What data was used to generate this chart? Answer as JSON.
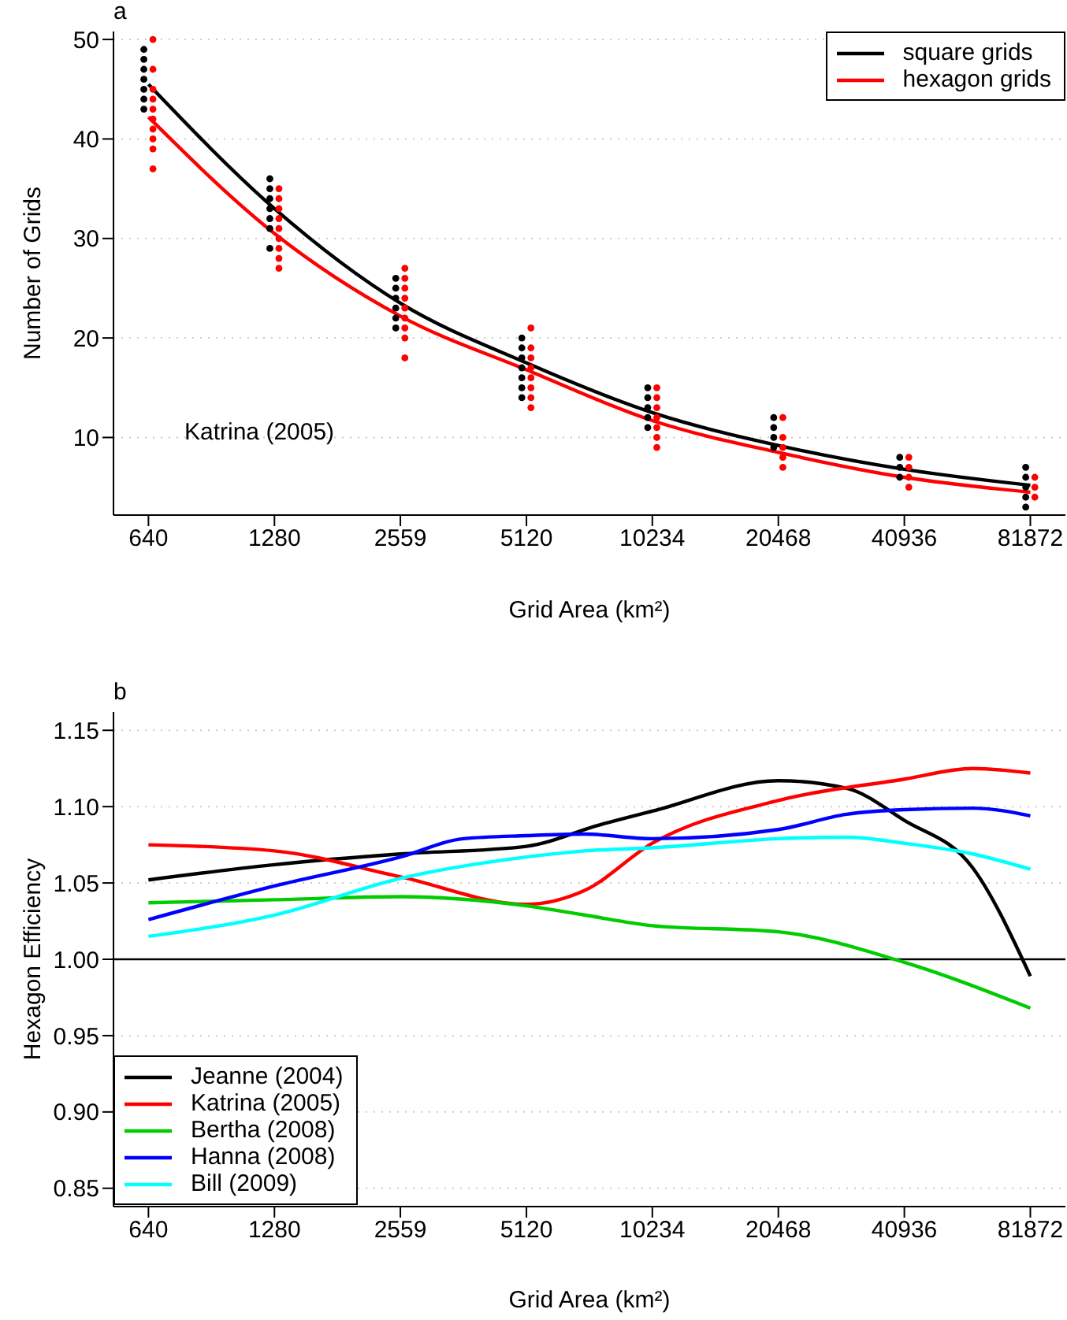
{
  "chart_data": [
    {
      "type": "scatter",
      "title": "a",
      "xlabel": "Grid Area (km²)",
      "ylabel": "Number of Grids",
      "log": "x",
      "xlim": [
        528,
        99300
      ],
      "xticks": [
        640,
        1280,
        2559,
        5120,
        10234,
        20468,
        40936,
        81872
      ],
      "ylim": [
        2.2,
        50.8
      ],
      "yticks": [
        10,
        20,
        30,
        40,
        50
      ],
      "grid": "y",
      "legend": "top right",
      "annotations": [
        "Katrina (2005)"
      ],
      "series": [
        {
          "marker": "circle",
          "color": "#000000",
          "x": [
            624,
            624,
            624,
            624,
            624,
            624,
            624,
            1248,
            1248,
            1248,
            1248,
            1248,
            1248,
            1248,
            2495,
            2495,
            2495,
            2495,
            2495,
            2495,
            4992,
            4992,
            4992,
            4992,
            4992,
            4992,
            4992,
            9978,
            9978,
            9978,
            9978,
            9978,
            19956,
            19956,
            19956,
            19956,
            39913,
            39913,
            39913,
            79825,
            79825,
            79825,
            79825,
            79825
          ],
          "values": [
            49,
            48,
            47,
            46,
            45,
            44,
            43,
            36,
            35,
            34,
            33,
            32,
            31,
            29,
            26,
            25,
            24,
            23,
            22,
            21,
            20,
            19,
            18,
            17,
            16,
            15,
            14,
            15,
            14,
            13,
            12,
            11,
            12,
            11,
            10,
            9,
            8,
            7,
            6,
            7,
            6,
            5,
            4,
            3
          ]
        },
        {
          "marker": "circle",
          "color": "#ff0000",
          "x": [
            656,
            656,
            656,
            656,
            656,
            656,
            656,
            656,
            656,
            656,
            1312,
            1312,
            1312,
            1312,
            1312,
            1312,
            1312,
            1312,
            1312,
            2623,
            2623,
            2623,
            2623,
            2623,
            2623,
            2623,
            2623,
            2623,
            5248,
            5248,
            5248,
            5248,
            5248,
            5248,
            5248,
            5248,
            10490,
            10490,
            10490,
            10490,
            10490,
            10490,
            10490,
            20980,
            20980,
            20980,
            20980,
            20980,
            41959,
            41959,
            41959,
            41959,
            83919,
            83919,
            83919
          ],
          "values": [
            50,
            47,
            45,
            44,
            43,
            42,
            41,
            40,
            39,
            37,
            35,
            34,
            33,
            32,
            31,
            30,
            29,
            28,
            27,
            27,
            26,
            25,
            24,
            23,
            22,
            21,
            20,
            18,
            21,
            19,
            18,
            17,
            16,
            15,
            14,
            13,
            15,
            14,
            13,
            12,
            11,
            10,
            9,
            12,
            10,
            9,
            8,
            7,
            8,
            7,
            6,
            5,
            6,
            5,
            4
          ]
        },
        {
          "type": "line",
          "name": "square grids",
          "color": "#000000",
          "x": [
            640,
            1280,
            2559,
            5120,
            10234,
            20468,
            40936,
            81872
          ],
          "values": [
            45.5,
            33,
            23.5,
            17.5,
            12.5,
            9.2,
            6.8,
            5.2
          ]
        },
        {
          "type": "line",
          "name": "hexagon grids",
          "color": "#ff0000",
          "x": [
            640,
            1280,
            2559,
            5120,
            10234,
            20468,
            40936,
            81872
          ],
          "values": [
            42.2,
            30.5,
            22.2,
            16.8,
            11.7,
            8.5,
            6.0,
            4.5
          ]
        }
      ]
    },
    {
      "type": "line",
      "title": "b",
      "xlabel": "Grid Area (km²)",
      "ylabel": "Hexagon Efficiency",
      "log": "x",
      "xlim": [
        528,
        99300
      ],
      "xticks": [
        640,
        1280,
        2559,
        5120,
        10234,
        20468,
        40936,
        81872
      ],
      "ylim": [
        0.838,
        1.162
      ],
      "yticks": [
        {
          "value": 0.85,
          "label": "0.85"
        },
        {
          "value": 0.9,
          "label": "0.90"
        },
        {
          "value": 0.95,
          "label": "0.95"
        },
        {
          "value": 1.0,
          "label": "1.00"
        },
        {
          "value": 1.05,
          "label": "1.05"
        },
        {
          "value": 1.1,
          "label": "1.10"
        },
        {
          "value": 1.15,
          "label": "1.15"
        }
      ],
      "grid": "y",
      "legend": "bottom left",
      "ref_lines": [
        {
          "axis": "y",
          "value": 1.0,
          "color": "#000000"
        }
      ],
      "series": [
        {
          "name": "Jeanne (2004)",
          "color": "#000000",
          "x": [
            640,
            1280,
            2559,
            5120,
            7660,
            10234,
            20468,
            29800,
            40936,
            59600,
            81872
          ],
          "values": [
            1.052,
            1.062,
            1.069,
            1.074,
            1.088,
            1.097,
            1.117,
            1.112,
            1.091,
            1.06,
            0.989
          ]
        },
        {
          "name": "Katrina (2005)",
          "color": "#ff0000",
          "x": [
            640,
            1280,
            2559,
            5120,
            7040,
            10234,
            20468,
            40936,
            59600,
            81872
          ],
          "values": [
            1.075,
            1.071,
            1.054,
            1.036,
            1.045,
            1.076,
            1.104,
            1.118,
            1.125,
            1.122
          ]
        },
        {
          "name": "Bertha (2008)",
          "color": "#00cc00",
          "x": [
            640,
            1280,
            2559,
            5120,
            7040,
            10234,
            20468,
            40936,
            81872
          ],
          "values": [
            1.037,
            1.039,
            1.041,
            1.035,
            1.029,
            1.022,
            1.018,
            0.998,
            0.968
          ]
        },
        {
          "name": "Hanna (2008)",
          "color": "#0000ff",
          "x": [
            640,
            1280,
            2559,
            3620,
            5120,
            7040,
            10234,
            20468,
            29800,
            40936,
            59600,
            81872
          ],
          "values": [
            1.026,
            1.048,
            1.067,
            1.079,
            1.081,
            1.082,
            1.079,
            1.085,
            1.095,
            1.098,
            1.099,
            1.094
          ]
        },
        {
          "name": "Bill (2009)",
          "color": "#00ffff",
          "x": [
            640,
            1280,
            2559,
            5120,
            7040,
            10234,
            20468,
            29800,
            40936,
            59600,
            81872
          ],
          "values": [
            1.015,
            1.029,
            1.053,
            1.067,
            1.071,
            1.073,
            1.079,
            1.08,
            1.076,
            1.069,
            1.059
          ]
        }
      ]
    }
  ]
}
